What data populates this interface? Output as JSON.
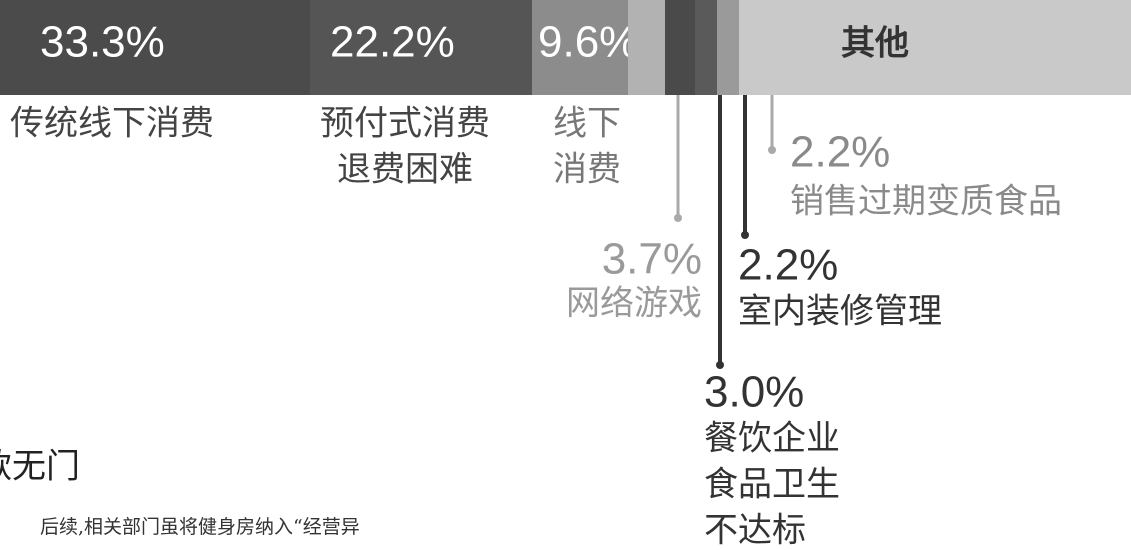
{
  "chart_data": {
    "type": "stacked_bar_h",
    "categories": [
      [
        "传统线下消费"
      ],
      [
        "预付式消费",
        "退费困难"
      ],
      [
        "线下",
        "消费"
      ],
      [
        "网络游戏"
      ],
      [
        "餐饮企业",
        "食品卫生",
        "不达标"
      ],
      [
        "室内装修管理"
      ],
      [
        "销售过期变质食品"
      ],
      [
        "其他"
      ]
    ],
    "values": [
      33.3,
      22.2,
      9.6,
      3.7,
      3.0,
      2.2,
      2.2,
      null
    ],
    "value_labels": [
      "33.3%",
      "22.2%",
      "9.6%",
      "3.7%",
      "3.0%",
      "2.2%",
      "2.2%",
      null
    ],
    "colors": [
      "#4b4b4b",
      "#555555",
      "#8c8c8c",
      "#b2b2b2",
      "#4a4a4a",
      "#5a5a5a",
      "#9a9a9a",
      "#c9c9c9"
    ]
  },
  "article": {
    "heading": "款无门",
    "body": "后续,相关部门虽将健身房纳入“经营异"
  }
}
